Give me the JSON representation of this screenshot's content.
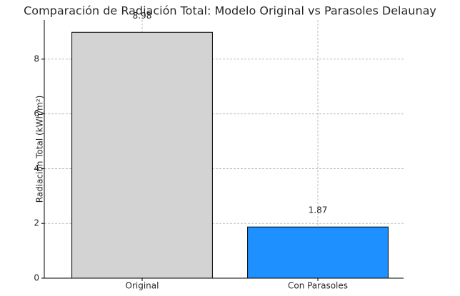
{
  "chart_data": {
    "type": "bar",
    "title": "Comparación de Radiación Total: Modelo Original vs Parasoles Delaunay",
    "y_label": "Radiación Total (kWh/m²)",
    "categories": [
      "Original",
      "Con Parasoles"
    ],
    "values": [
      8.98,
      1.87
    ],
    "colors": [
      "#d3d3d3",
      "#1e90ff"
    ],
    "ylim": [
      0,
      9.43
    ],
    "yticks": [
      0,
      2,
      4,
      6,
      8
    ],
    "grid": true
  }
}
